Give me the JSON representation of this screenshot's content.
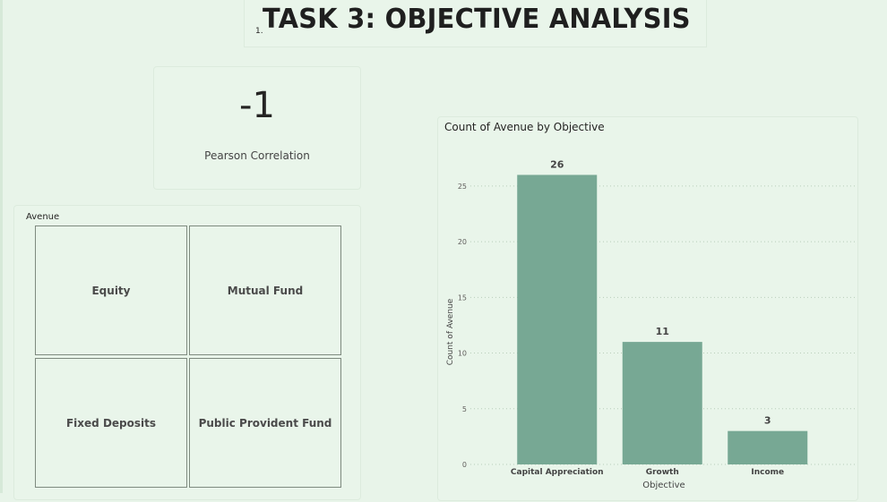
{
  "header": {
    "number": "1.",
    "title": "TASK 3: OBJECTIVE ANALYSIS"
  },
  "kpi": {
    "value": "-1",
    "label": "Pearson Correlation"
  },
  "slicer": {
    "title": "Avenue",
    "items": [
      "Equity",
      "Mutual Fund",
      "Fixed Deposits",
      "Public Provident Fund"
    ]
  },
  "colors": {
    "bar": "#77a894",
    "background": "#e8f4e9"
  },
  "chart_data": {
    "type": "bar",
    "title": "Count of Avenue by Objective",
    "xlabel": "Objective",
    "ylabel": "Count of Avenue",
    "categories": [
      "Capital Appreciation",
      "Growth",
      "Income"
    ],
    "values": [
      26,
      11,
      3
    ],
    "ylim": [
      0,
      27
    ],
    "yticks": [
      0,
      5,
      10,
      15,
      20,
      25
    ],
    "grid": true,
    "data_labels": true
  }
}
